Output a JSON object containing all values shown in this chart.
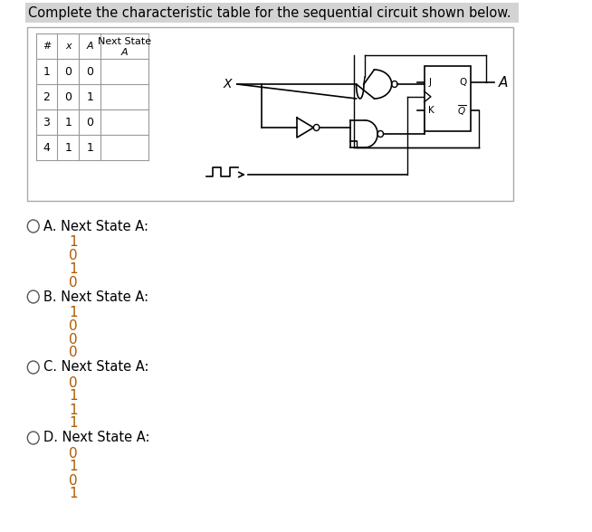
{
  "title": "Complete the characteristic table for the sequential circuit shown below.",
  "title_bg": "#d3d3d3",
  "table_headers_line1": [
    "#",
    "x",
    "A",
    "Next State"
  ],
  "table_headers_line2": [
    "",
    "",
    "",
    "A"
  ],
  "table_rows": [
    [
      "1",
      "0",
      "0",
      ""
    ],
    [
      "2",
      "0",
      "1",
      ""
    ],
    [
      "3",
      "1",
      "0",
      ""
    ],
    [
      "4",
      "1",
      "1",
      ""
    ]
  ],
  "options": [
    {
      "label": "A. Next State A:",
      "values": [
        "1",
        "0",
        "1",
        "0"
      ]
    },
    {
      "label": "B. Next State A:",
      "values": [
        "1",
        "0",
        "0",
        "0"
      ]
    },
    {
      "label": "C. Next State A:",
      "values": [
        "0",
        "1",
        "1",
        "1"
      ]
    },
    {
      "label": "D. Next State A:",
      "values": [
        "0",
        "1",
        "0",
        "1"
      ]
    }
  ],
  "bg_color": "#ffffff",
  "text_color": "#000000",
  "value_color": "#b05a00",
  "table_border": "#999999",
  "title_font_size": 10.5,
  "body_font_size": 10.5,
  "value_font_size": 11
}
